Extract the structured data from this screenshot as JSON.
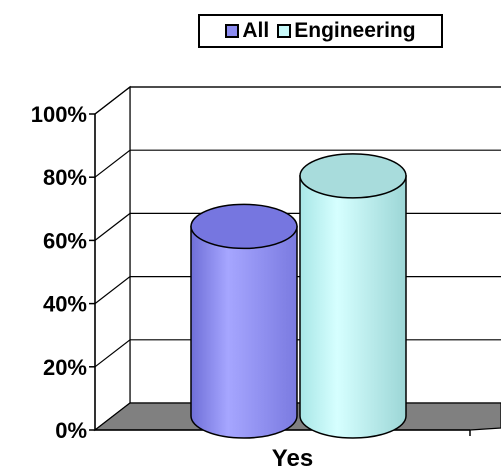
{
  "chart_data": {
    "type": "bar",
    "categories": [
      "Yes"
    ],
    "series": [
      {
        "name": "All",
        "values": [
          60
        ],
        "color": "#8c8cf0"
      },
      {
        "name": "Engineering",
        "values": [
          76
        ],
        "color": "#c8fafa"
      }
    ],
    "ylim": [
      0,
      100
    ],
    "yticks": [
      "0%",
      "20%",
      "40%",
      "60%",
      "80%",
      "100%"
    ],
    "grid": true,
    "legend_position": "top-right",
    "floor_color": "#808080"
  }
}
